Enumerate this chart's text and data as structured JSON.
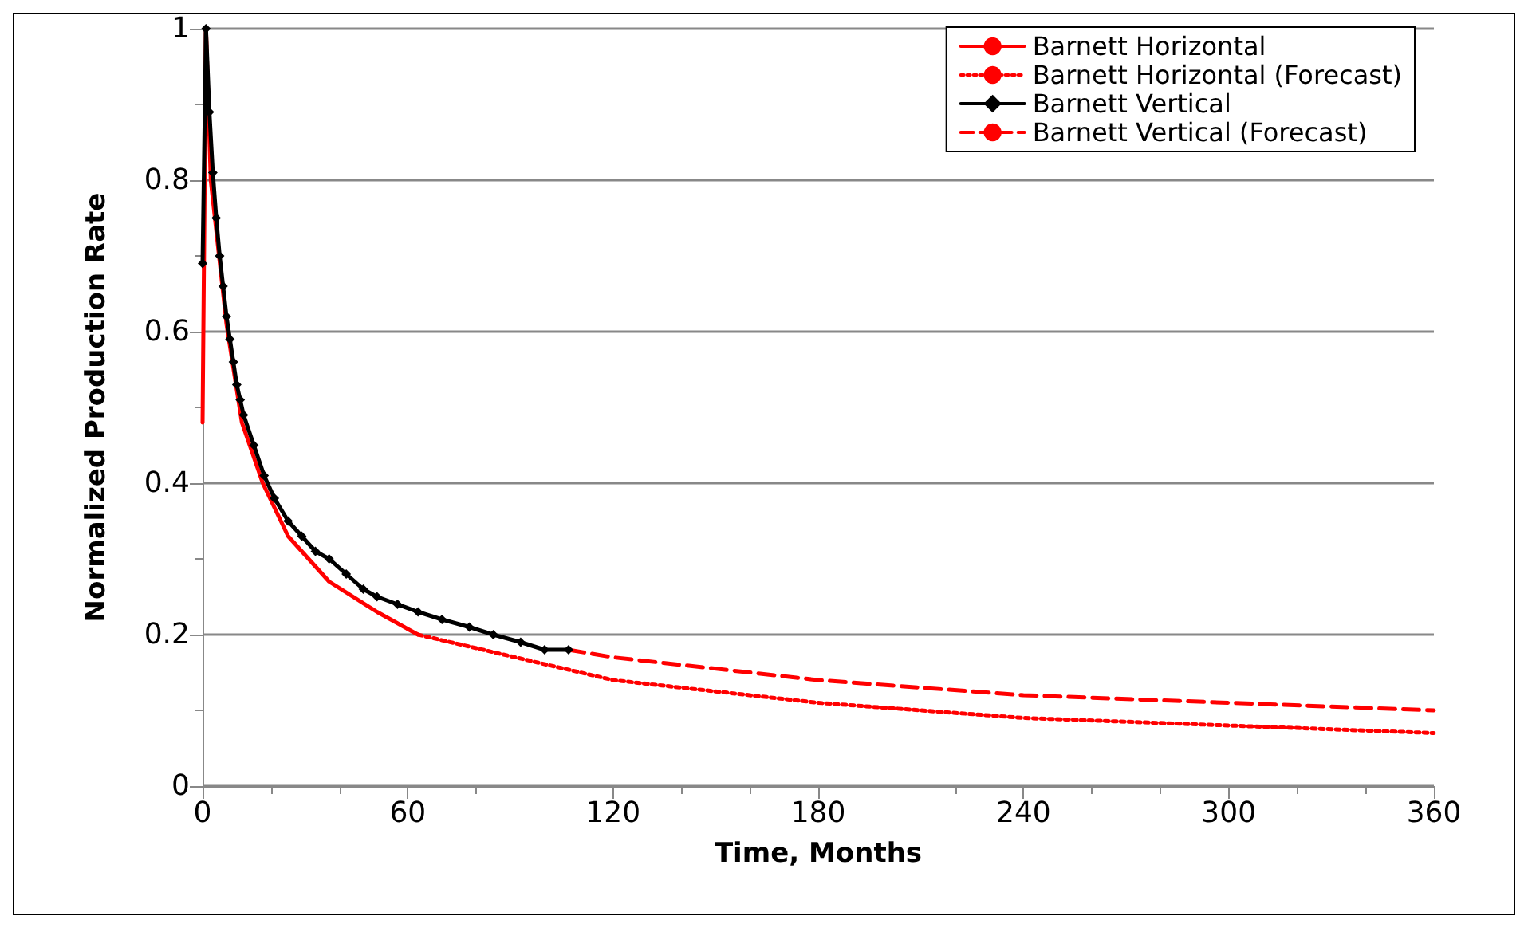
{
  "chart_data": {
    "type": "line",
    "xlabel": "Time, Months",
    "ylabel": "Normalized Production Rate",
    "xlim": [
      0,
      360
    ],
    "xticks": [
      0,
      60,
      120,
      180,
      240,
      300,
      360
    ],
    "ylim": [
      0,
      1
    ],
    "yticks": [
      0,
      0.2,
      0.4,
      0.6,
      0.8,
      1
    ],
    "grid": "y",
    "legend": "top right",
    "series": [
      {
        "name": "Barnett Horizontal",
        "color": "#ff0000",
        "line_style": "solid",
        "marker": "none",
        "x": [
          0,
          1,
          2.4,
          7,
          11.5,
          17.6,
          25,
          37,
          51,
          63
        ],
        "values": [
          0.48,
          1.0,
          0.8,
          0.61,
          0.48,
          0.4,
          0.33,
          0.27,
          0.23,
          0.2
        ]
      },
      {
        "name": "Barnett Horizontal (Forecast)",
        "color": "#ff0000",
        "line_style": "dotted",
        "marker": "none",
        "x": [
          63,
          120,
          180,
          240,
          300,
          360
        ],
        "values": [
          0.2,
          0.14,
          0.11,
          0.09,
          0.08,
          0.07
        ]
      },
      {
        "name": "Barnett Vertical",
        "color": "#000000",
        "line_style": "solid",
        "marker": "diamond",
        "x": [
          0,
          1,
          2,
          3,
          4,
          5,
          6,
          7,
          8,
          9,
          10,
          11,
          12,
          15,
          18,
          21,
          25,
          29,
          33,
          37,
          42,
          47,
          51,
          57,
          63,
          70,
          78,
          85,
          93,
          100,
          107
        ],
        "values": [
          0.69,
          1.0,
          0.89,
          0.81,
          0.75,
          0.7,
          0.66,
          0.62,
          0.59,
          0.56,
          0.53,
          0.51,
          0.49,
          0.45,
          0.41,
          0.38,
          0.35,
          0.33,
          0.31,
          0.3,
          0.28,
          0.26,
          0.25,
          0.24,
          0.23,
          0.22,
          0.21,
          0.2,
          0.19,
          0.18,
          0.18
        ]
      },
      {
        "name": "Barnett Vertical (Forecast)",
        "color": "#ff0000",
        "line_style": "dashed",
        "marker": "none",
        "x": [
          107,
          120,
          180,
          240,
          300,
          360
        ],
        "values": [
          0.18,
          0.17,
          0.14,
          0.12,
          0.11,
          0.1
        ]
      }
    ]
  }
}
